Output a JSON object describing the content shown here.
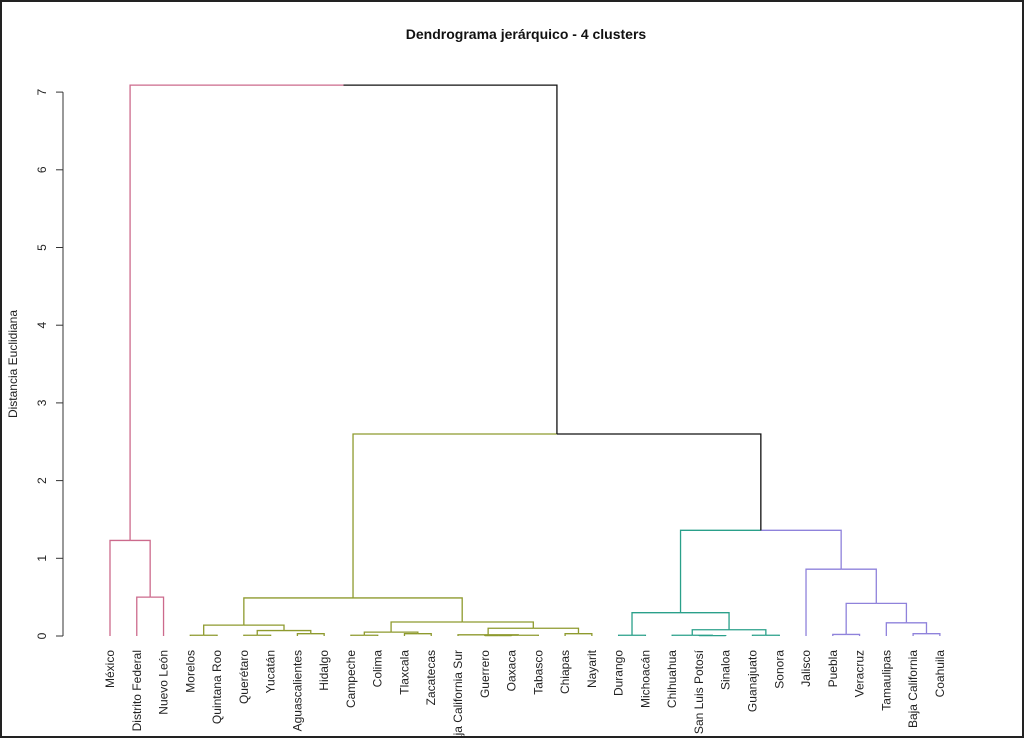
{
  "chart_data": {
    "type": "dendrogram",
    "title": "Dendrograma jerárquico - 4 clusters",
    "xlabel": "",
    "ylabel": "Distancia Euclidiana",
    "ylim": [
      0,
      7
    ],
    "yticks": [
      "0",
      "1",
      "2",
      "3",
      "4",
      "5",
      "6",
      "7"
    ],
    "grid": false,
    "leaves": [
      "México",
      "Distrito Federal",
      "Nuevo León",
      "Morelos",
      "Quintana Roo",
      "Querétaro",
      "Yucatán",
      "Aguascalientes",
      "Hidalgo",
      "Campeche",
      "Colima",
      "Tlaxcala",
      "Zacatecas",
      "Baja California Sur",
      "Guerrero",
      "Oaxaca",
      "Tabasco",
      "Chiapas",
      "Nayarit",
      "Durango",
      "Michoacán",
      "Chihuahua",
      "San Luis Potosí",
      "Sinaloa",
      "Guanajuato",
      "Sonora",
      "Jalisco",
      "Puebla",
      "Veracruz",
      "Tamaulipas",
      "Baja California",
      "Coahuila"
    ],
    "clusters": [
      {
        "id": 1,
        "color": "#CC6A8C",
        "members": [
          "México",
          "Distrito Federal",
          "Nuevo León"
        ]
      },
      {
        "id": 2,
        "color": "#8E9A2E",
        "members": [
          "Morelos",
          "Quintana Roo",
          "Querétaro",
          "Yucatán",
          "Aguascalientes",
          "Hidalgo",
          "Campeche",
          "Colima",
          "Tlaxcala",
          "Zacatecas",
          "Baja California Sur",
          "Guerrero",
          "Oaxaca",
          "Tabasco",
          "Chiapas",
          "Nayarit"
        ]
      },
      {
        "id": 3,
        "color": "#2AA08A",
        "members": [
          "Durango",
          "Michoacán",
          "Chihuahua",
          "San Luis Potosí",
          "Sinaloa",
          "Guanajuato",
          "Sonora"
        ]
      },
      {
        "id": 4,
        "color": "#8F82DB",
        "members": [
          "Jalisco",
          "Puebla",
          "Veracruz",
          "Tamaulipas",
          "Baja California",
          "Coahuila"
        ]
      }
    ],
    "tree": {
      "h": 7.09,
      "c": [
        {
          "h": 1.23,
          "c": [
            "México",
            {
              "h": 0.5,
              "c": [
                "Distrito Federal",
                "Nuevo León"
              ]
            }
          ]
        },
        {
          "h": 2.6,
          "c": [
            {
              "h": 0.49,
              "c": [
                {
                  "h": 0.14,
                  "c": [
                    {
                      "h": 0.01,
                      "c": [
                        "Morelos",
                        "Quintana Roo"
                      ]
                    },
                    {
                      "h": 0.07,
                      "c": [
                        {
                          "h": 0.01,
                          "c": [
                            "Querétaro",
                            "Yucatán"
                          ]
                        },
                        {
                          "h": 0.03,
                          "c": [
                            "Aguascalientes",
                            "Hidalgo"
                          ]
                        }
                      ]
                    }
                  ]
                },
                {
                  "h": 0.18,
                  "c": [
                    {
                      "h": 0.05,
                      "c": [
                        {
                          "h": 0.01,
                          "c": [
                            "Campeche",
                            "Colima"
                          ]
                        },
                        {
                          "h": 0.03,
                          "c": [
                            "Tlaxcala",
                            "Zacatecas"
                          ]
                        }
                      ]
                    },
                    {
                      "h": 0.1,
                      "c": [
                        {
                          "h": 0.015,
                          "c": [
                            "Baja California Sur",
                            {
                              "h": 0.01,
                              "c": [
                                {
                                  "h": 0.005,
                                  "c": [
                                    "Guerrero",
                                    "Oaxaca"
                                  ]
                                },
                                "Tabasco"
                              ]
                            }
                          ]
                        },
                        {
                          "h": 0.03,
                          "c": [
                            "Chiapas",
                            "Nayarit"
                          ]
                        }
                      ]
                    }
                  ]
                }
              ]
            },
            {
              "h": 1.36,
              "c": [
                {
                  "h": 0.3,
                  "c": [
                    {
                      "h": 0.01,
                      "c": [
                        "Durango",
                        "Michoacán"
                      ]
                    },
                    {
                      "h": 0.08,
                      "c": [
                        {
                          "h": 0.01,
                          "c": [
                            "Chihuahua",
                            {
                              "h": 0.005,
                              "c": [
                                "San Luis Potosí",
                                "Sinaloa"
                              ]
                            }
                          ]
                        },
                        {
                          "h": 0.01,
                          "c": [
                            "Guanajuato",
                            "Sonora"
                          ]
                        }
                      ]
                    }
                  ]
                },
                {
                  "h": 0.86,
                  "c": [
                    "Jalisco",
                    {
                      "h": 0.42,
                      "c": [
                        {
                          "h": 0.02,
                          "c": [
                            "Puebla",
                            "Veracruz"
                          ]
                        },
                        {
                          "h": 0.17,
                          "c": [
                            "Tamaulipas",
                            {
                              "h": 0.03,
                              "c": [
                                "Baja California",
                                "Coahuila"
                              ]
                            }
                          ]
                        }
                      ]
                    }
                  ]
                }
              ]
            }
          ]
        }
      ]
    }
  }
}
